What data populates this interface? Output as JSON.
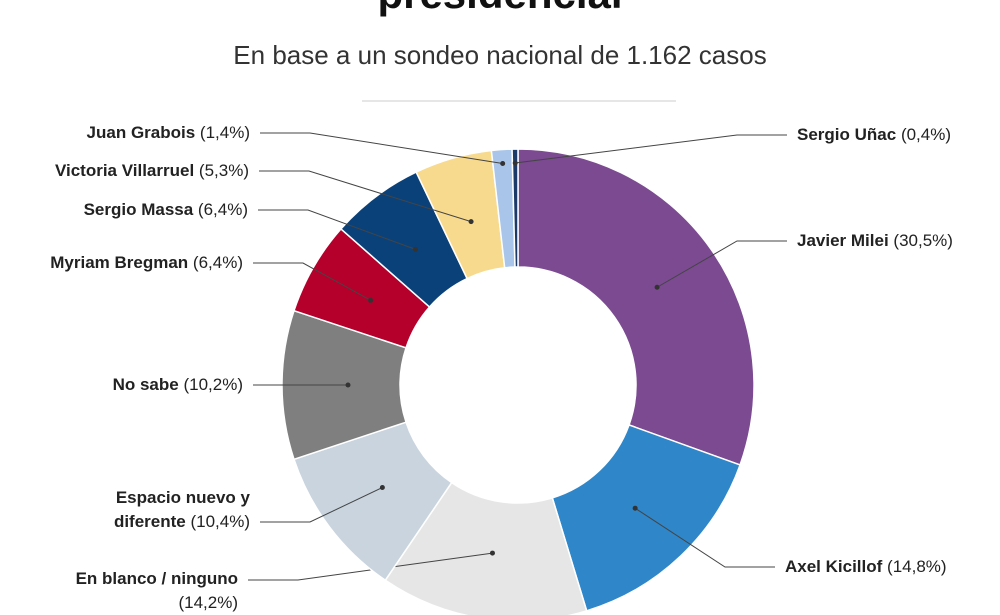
{
  "chart_data": {
    "type": "donut",
    "title": "presidencial",
    "subtitle": "En base a un sondeo nacional de 1.162 casos",
    "categories": [
      "Javier Milei",
      "Axel Kicillof",
      "En blanco / ninguno",
      "Espacio nuevo y diferente",
      "No sabe",
      "Myriam Bregman",
      "Sergio Massa",
      "Victoria Villarruel",
      "Juan Grabois",
      "Sergio Uñac"
    ],
    "values": [
      30.5,
      14.8,
      14.2,
      10.4,
      10.2,
      6.4,
      6.4,
      5.3,
      1.4,
      0.4
    ],
    "value_labels": [
      "(30,5%)",
      "(14,8%)",
      "(14,2%)",
      "(10,4%)",
      "(10,2%)",
      "(6,4%)",
      "(6,4%)",
      "(5,3%)",
      "(1,4%)",
      "(0,4%)"
    ],
    "colors": [
      "#7b4a91",
      "#2f86c8",
      "#e6e6e6",
      "#c9d4df",
      "#7f7f7f",
      "#b4002b",
      "#0b4179",
      "#f8da8e",
      "#a9c6ea",
      "#1c3a68"
    ]
  }
}
